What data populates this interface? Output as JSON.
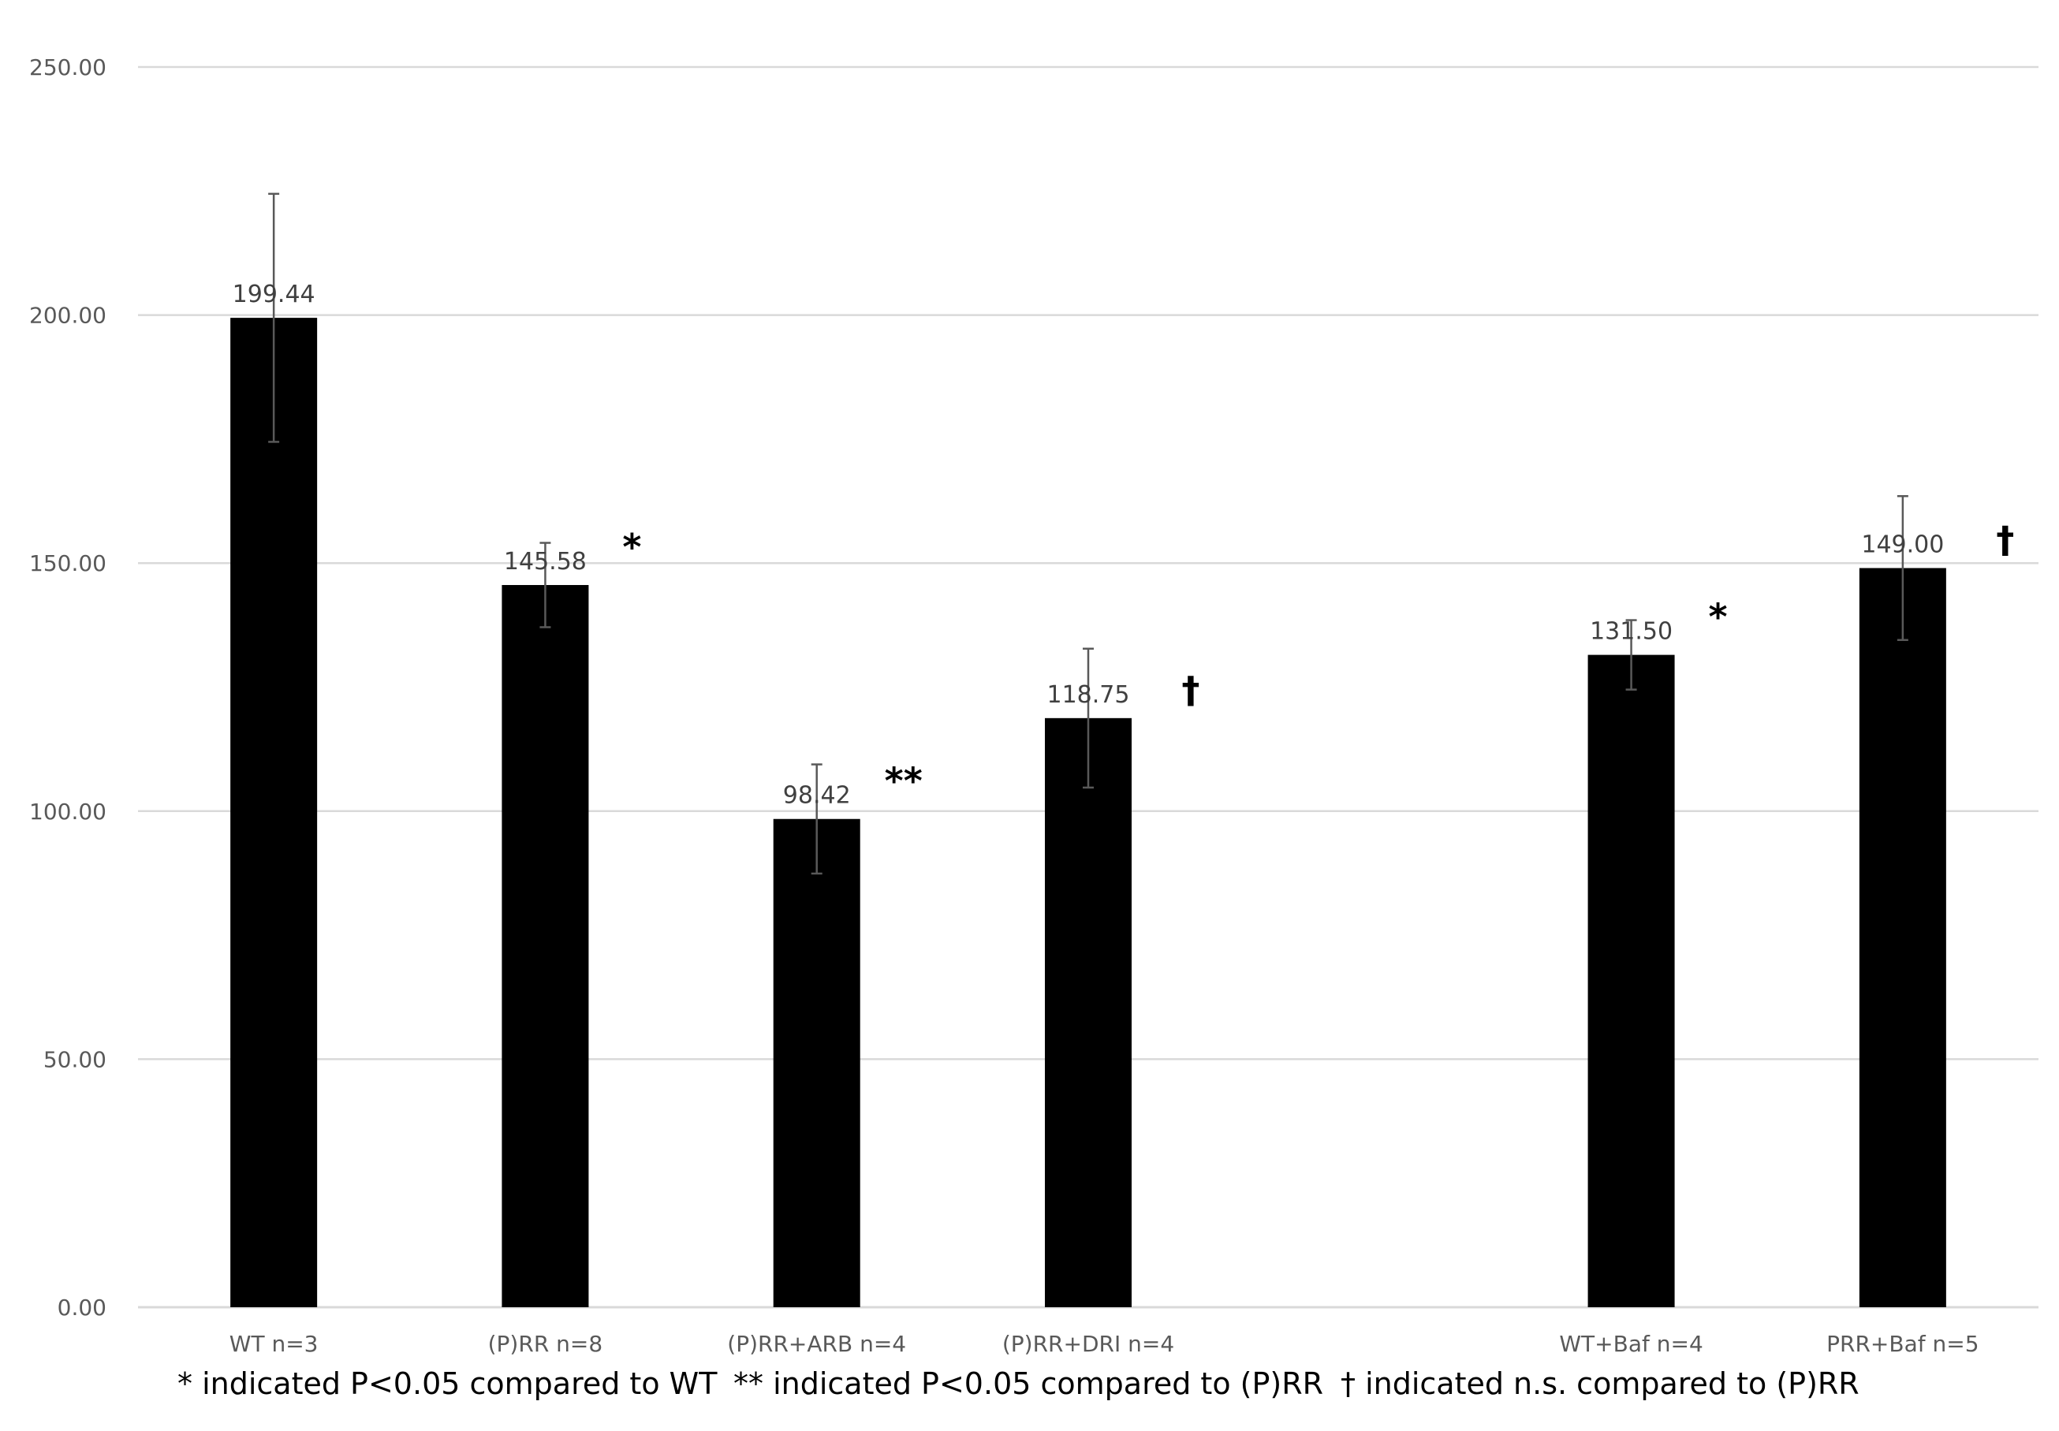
{
  "chart_data": {
    "type": "bar",
    "title": "",
    "xlabel": "",
    "ylabel": "",
    "ylim": [
      0,
      250
    ],
    "yticks": [
      0,
      50,
      100,
      150,
      200,
      250
    ],
    "ytick_labels": [
      "0.00",
      "50.00",
      "100.00",
      "150.00",
      "200.00",
      "250.00"
    ],
    "grid": true,
    "legend": "none",
    "bar_color": "#000000",
    "categories": [
      "WT n=3",
      "(P)RR n=8",
      "(P)RR+ARB n=4",
      "(P)RR+DRI n=4",
      "",
      "WT+Baf n=4",
      "PRR+Baf n=5"
    ],
    "values": [
      199.44,
      145.58,
      98.42,
      118.75,
      null,
      131.5,
      149.0
    ],
    "data_labels": [
      "199.44",
      "145.58",
      "98.42",
      "118.75",
      "",
      "131.50",
      "149.00"
    ],
    "error": [
      25,
      8.5,
      11,
      14,
      null,
      7,
      14.5
    ],
    "significance": [
      "",
      "*",
      "**",
      "†",
      "",
      "*",
      "†"
    ],
    "footnotes": [
      "* indicated P<0.05 compared to WT",
      "** indicated P<0.05 compared to (P)RR",
      "† indicated n.s. compared to (P)RR"
    ]
  }
}
